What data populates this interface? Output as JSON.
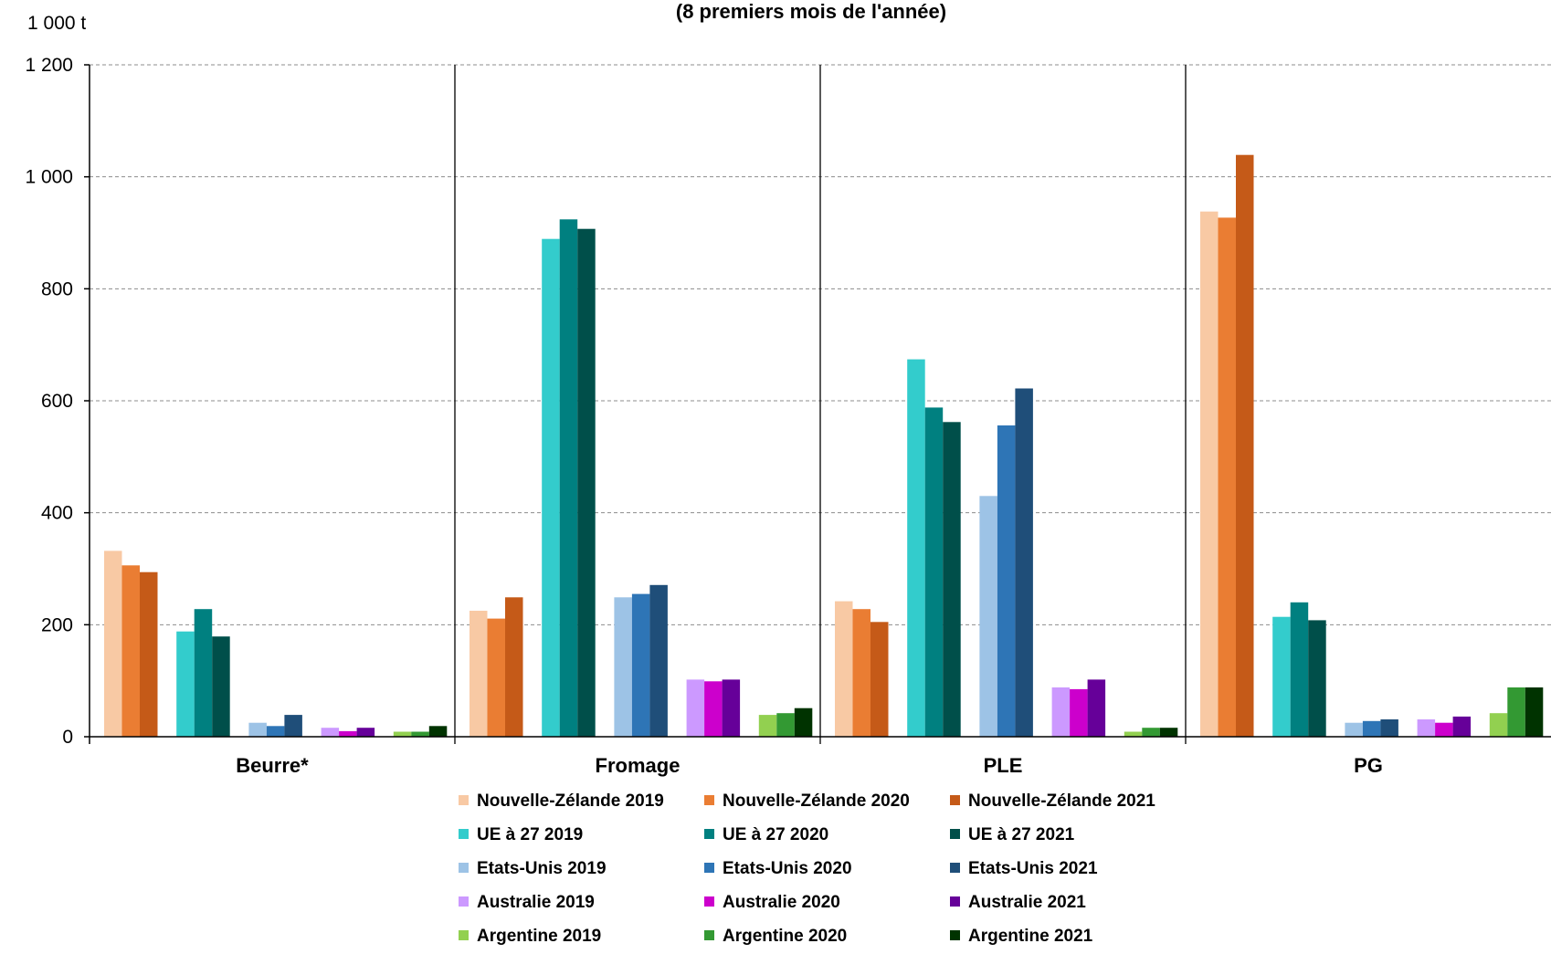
{
  "chart_data": {
    "type": "bar",
    "subtitle": "(8 premiers mois de l'année)",
    "unit_label": "1 000 t",
    "categories": [
      "Beurre*",
      "Fromage",
      "PLE",
      "PG"
    ],
    "ylim": [
      0,
      1200
    ],
    "yticks": [
      0,
      200,
      400,
      600,
      800,
      1000,
      1200
    ],
    "ytick_labels": [
      "0",
      "200",
      "400",
      "600",
      "800",
      "1 000",
      "1 200"
    ],
    "grid": true,
    "legend_position": "bottom",
    "series": [
      {
        "name": "Nouvelle-Zélande 2019",
        "color": "#f8c9a4",
        "values": [
          332,
          225,
          242,
          938
        ]
      },
      {
        "name": "Nouvelle-Zélande 2020",
        "color": "#ea7d33",
        "values": [
          306,
          211,
          228,
          927
        ]
      },
      {
        "name": "Nouvelle-Zélande 2021",
        "color": "#c55a18",
        "values": [
          294,
          249,
          205,
          1039
        ]
      },
      {
        "name": "UE à 27 2019",
        "color": "#33cccc",
        "values": [
          188,
          889,
          674,
          214
        ]
      },
      {
        "name": "UE à 27 2020",
        "color": "#008080",
        "values": [
          228,
          924,
          588,
          240
        ]
      },
      {
        "name": "UE à 27 2021",
        "color": "#004f4a",
        "values": [
          179,
          907,
          562,
          208
        ]
      },
      {
        "name": "Etats-Unis 2019",
        "color": "#9dc3e6",
        "values": [
          25,
          249,
          430,
          25
        ]
      },
      {
        "name": "Etats-Unis 2020",
        "color": "#2e75b6",
        "values": [
          19,
          255,
          556,
          28
        ]
      },
      {
        "name": "Etats-Unis 2021",
        "color": "#1f4e79",
        "values": [
          39,
          271,
          622,
          31
        ]
      },
      {
        "name": "Australie 2019",
        "color": "#cc99ff",
        "values": [
          16,
          102,
          88,
          31
        ]
      },
      {
        "name": "Australie 2020",
        "color": "#cc00cc",
        "values": [
          10,
          99,
          85,
          25
        ]
      },
      {
        "name": "Australie 2021",
        "color": "#660099",
        "values": [
          16,
          102,
          102,
          36
        ]
      },
      {
        "name": "Argentine 2019",
        "color": "#92d050",
        "values": [
          9,
          39,
          9,
          42
        ]
      },
      {
        "name": "Argentine 2020",
        "color": "#339933",
        "values": [
          9,
          42,
          16,
          88
        ]
      },
      {
        "name": "Argentine 2021",
        "color": "#003300",
        "values": [
          19,
          51,
          16,
          88
        ]
      }
    ]
  }
}
